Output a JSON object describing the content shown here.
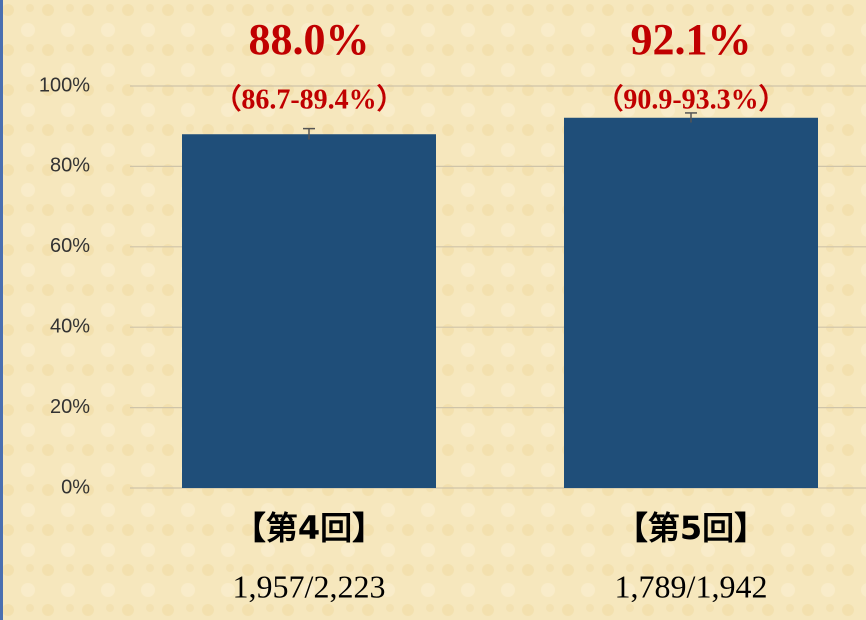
{
  "chart_data": {
    "type": "bar",
    "categories": [
      "【第4回】",
      "【第5回】"
    ],
    "values": [
      88.0,
      92.1
    ],
    "value_labels": [
      "88.0%",
      "92.1%"
    ],
    "ci_low": [
      86.7,
      90.9
    ],
    "ci_high": [
      89.4,
      93.3
    ],
    "ci_labels": [
      "（86.7-89.4%）",
      "（90.9-93.3%）"
    ],
    "counts": [
      "1,957/2,223",
      "1,789/1,942"
    ],
    "color": "#1f4e79",
    "ylim": [
      0,
      100
    ],
    "yticks": [
      {
        "value": 0,
        "label": "0%"
      },
      {
        "value": 20,
        "label": "20%"
      },
      {
        "value": 40,
        "label": "40%"
      },
      {
        "value": 60,
        "label": "60%"
      },
      {
        "value": 80,
        "label": "80%"
      },
      {
        "value": 100,
        "label": "100%"
      }
    ],
    "grid": true
  }
}
